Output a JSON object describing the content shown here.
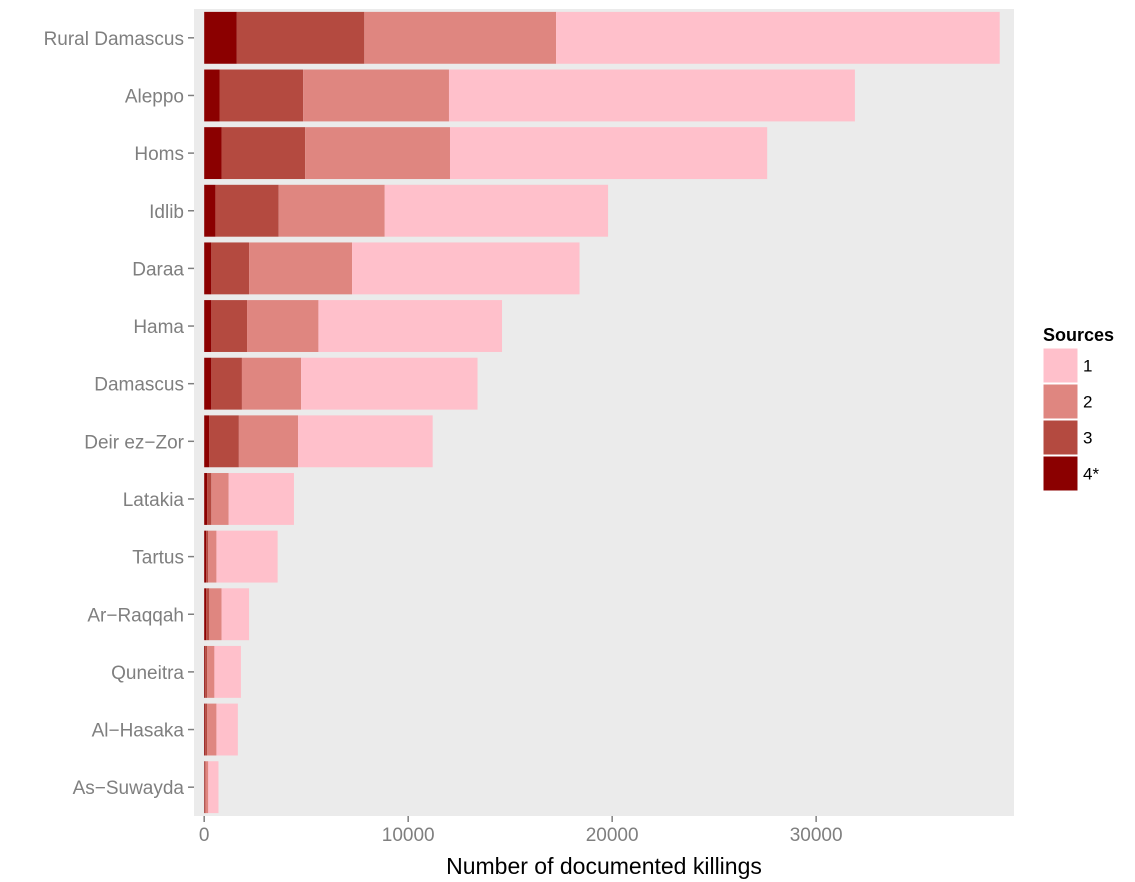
{
  "chart_data": {
    "type": "bar",
    "orientation": "horizontal",
    "stacked": true,
    "categories": [
      "Rural Damascus",
      "Aleppo",
      "Homs",
      "Idlib",
      "Daraa",
      "Hama",
      "Damascus",
      "Deir ez−Zor",
      "Latakia",
      "Tartus",
      "Ar−Raqqah",
      "Quneitra",
      "Al−Hasaka",
      "As−Suwayda"
    ],
    "series": [
      {
        "name": "4*",
        "color": "#8b0000",
        "values": [
          1600,
          750,
          850,
          550,
          350,
          350,
          350,
          250,
          150,
          100,
          100,
          50,
          50,
          30
        ]
      },
      {
        "name": "3",
        "color": "#b44a40",
        "values": [
          6250,
          4100,
          4100,
          3100,
          1850,
          1750,
          1500,
          1450,
          200,
          100,
          150,
          100,
          100,
          30
        ]
      },
      {
        "name": "2",
        "color": "#df8680",
        "values": [
          9400,
          7150,
          7100,
          5200,
          5050,
          3500,
          2900,
          2900,
          850,
          400,
          600,
          350,
          450,
          140
        ]
      },
      {
        "name": "1",
        "color": "#ffc0cb",
        "values": [
          21750,
          19900,
          15550,
          10950,
          11150,
          9000,
          8650,
          6600,
          3200,
          3000,
          1350,
          1300,
          1050,
          500
        ]
      }
    ],
    "xlabel": "Number of documented killings",
    "ylabel": "",
    "xlim": [
      -500,
      39700
    ],
    "xticks": [
      0,
      10000,
      20000,
      30000
    ],
    "xtick_labels": [
      "0",
      "10000",
      "20000",
      "30000"
    ],
    "grid": false,
    "panel_background": "#ebebeb",
    "legend": {
      "title": "Sources",
      "placement": "right",
      "entries": [
        {
          "label": "1",
          "color": "#ffc0cb"
        },
        {
          "label": "2",
          "color": "#df8680"
        },
        {
          "label": "3",
          "color": "#b44a40"
        },
        {
          "label": "4*",
          "color": "#8b0000"
        }
      ]
    }
  }
}
